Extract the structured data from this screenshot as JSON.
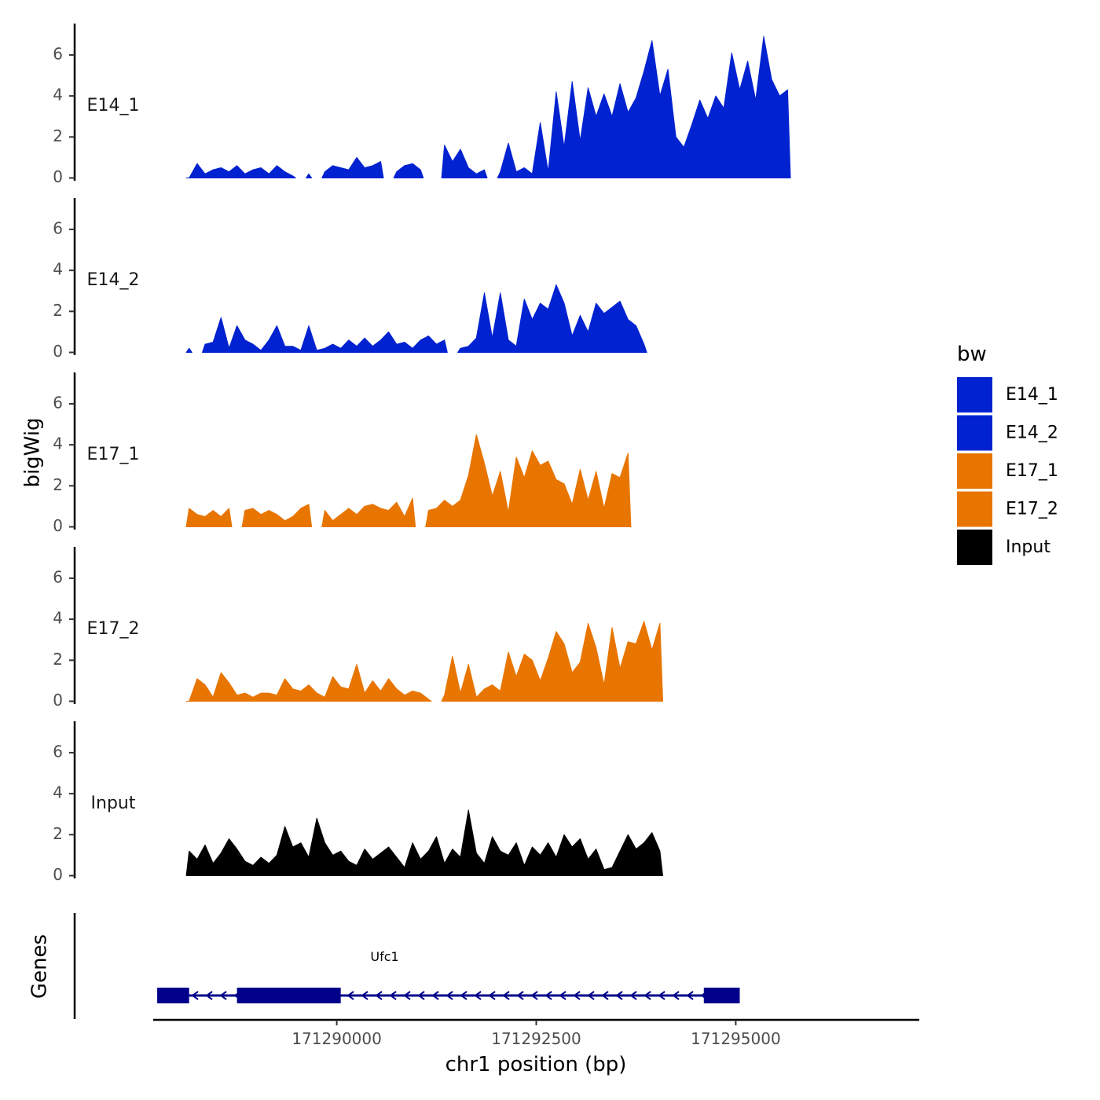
{
  "chart_data": {
    "type": "area",
    "title": "",
    "xlabel": "chr1 position (bp)",
    "ylabel": "bigWig",
    "genes_label": "Genes",
    "xlim": [
      171287700,
      171297300
    ],
    "ylim": [
      0,
      7.3
    ],
    "x_ticks": [
      171290000,
      171292500,
      171295000
    ],
    "x_tick_labels": [
      "171290000",
      "171292500",
      "171295000"
    ],
    "y_ticks": [
      0,
      2,
      4,
      6
    ],
    "y_tick_labels": [
      "0",
      "2",
      "4",
      "6"
    ],
    "legend": {
      "title": "bw",
      "position": "right",
      "entries": [
        {
          "label": "E14_1",
          "color": "#0022D0"
        },
        {
          "label": "E14_2",
          "color": "#0022D0"
        },
        {
          "label": "E17_1",
          "color": "#E87500"
        },
        {
          "label": "E17_2",
          "color": "#E87500"
        },
        {
          "label": "Input",
          "color": "#000000"
        }
      ]
    },
    "x_start": 171288150,
    "x_step": 100,
    "series": [
      {
        "name": "E14_1",
        "color": "#0022D0",
        "values": [
          0.0,
          0.7,
          0.2,
          0.4,
          0.5,
          0.3,
          0.6,
          0.2,
          0.4,
          0.5,
          0.2,
          0.6,
          0.3,
          0.1,
          null,
          0.2,
          null,
          0.3,
          0.6,
          0.5,
          0.4,
          1.0,
          0.5,
          0.6,
          0.8,
          null,
          0.3,
          0.6,
          0.7,
          0.4,
          null,
          null,
          1.6,
          0.8,
          1.4,
          0.5,
          0.2,
          0.4,
          null,
          0.3,
          1.7,
          0.3,
          0.5,
          0.2,
          2.7,
          0.3,
          4.2,
          1.5,
          4.7,
          1.8,
          4.4,
          3.0,
          4.1,
          3.0,
          4.6,
          3.2,
          3.9,
          5.2,
          6.7,
          4.0,
          5.3,
          2.0,
          1.5,
          2.6,
          3.8,
          2.9,
          4.0,
          3.4,
          6.1,
          4.3,
          5.7,
          3.8,
          6.9,
          4.8,
          4.0,
          4.3
        ]
      },
      {
        "name": "E14_2",
        "color": "#0022D0",
        "values": [
          0.2,
          null,
          0.4,
          0.5,
          1.7,
          0.2,
          1.3,
          0.6,
          0.4,
          0.1,
          0.6,
          1.3,
          0.3,
          0.3,
          0.1,
          1.3,
          0.1,
          0.2,
          0.4,
          0.2,
          0.6,
          0.3,
          0.7,
          0.3,
          0.6,
          1.0,
          0.4,
          0.5,
          0.2,
          0.6,
          0.8,
          0.4,
          0.6,
          null,
          0.2,
          0.3,
          0.7,
          2.9,
          0.7,
          2.9,
          0.6,
          0.3,
          2.6,
          1.6,
          2.4,
          2.1,
          3.3,
          2.4,
          0.8,
          1.8,
          1.0,
          2.4,
          1.9,
          2.2,
          2.5,
          1.6,
          1.3,
          0.4
        ]
      },
      {
        "name": "E17_1",
        "color": "#E87500",
        "values": [
          0.9,
          0.6,
          0.5,
          0.8,
          0.5,
          0.9,
          null,
          0.8,
          0.9,
          0.6,
          0.8,
          0.6,
          0.3,
          0.5,
          0.9,
          1.1,
          null,
          0.8,
          0.3,
          0.6,
          0.9,
          0.6,
          1.0,
          1.1,
          0.9,
          0.8,
          1.2,
          0.5,
          1.4,
          null,
          0.8,
          0.9,
          1.3,
          1.0,
          1.3,
          2.5,
          4.5,
          3.1,
          1.5,
          2.7,
          0.7,
          3.4,
          2.4,
          3.7,
          3.0,
          3.2,
          2.3,
          2.1,
          1.1,
          2.8,
          1.3,
          2.7,
          0.9,
          2.6,
          2.4,
          3.6
        ]
      },
      {
        "name": "E17_2",
        "color": "#E87500",
        "values": [
          0.0,
          1.1,
          0.8,
          0.2,
          1.4,
          0.9,
          0.3,
          0.4,
          0.2,
          0.4,
          0.4,
          0.3,
          1.1,
          0.6,
          0.5,
          0.8,
          0.4,
          0.2,
          1.2,
          0.7,
          0.6,
          1.8,
          0.4,
          1.0,
          0.5,
          1.1,
          0.6,
          0.3,
          0.5,
          0.4,
          0.1,
          null,
          0.3,
          2.2,
          0.4,
          1.8,
          0.2,
          0.6,
          0.8,
          0.5,
          2.4,
          1.2,
          2.3,
          2.0,
          1.0,
          2.1,
          3.4,
          2.8,
          1.4,
          1.9,
          3.8,
          2.6,
          0.8,
          3.6,
          1.6,
          2.9,
          2.8,
          3.9,
          2.5,
          3.8
        ]
      },
      {
        "name": "Input",
        "color": "#000000",
        "values": [
          1.2,
          0.8,
          1.5,
          0.6,
          1.1,
          1.8,
          1.3,
          0.7,
          0.5,
          0.9,
          0.6,
          1.0,
          2.4,
          1.4,
          1.6,
          0.9,
          2.8,
          1.6,
          1.0,
          1.2,
          0.7,
          0.5,
          1.3,
          0.8,
          1.1,
          1.4,
          0.9,
          0.4,
          1.6,
          0.8,
          1.2,
          1.9,
          0.6,
          1.3,
          0.9,
          3.2,
          1.1,
          0.6,
          1.9,
          1.2,
          1.0,
          1.6,
          0.5,
          1.4,
          1.0,
          1.6,
          0.9,
          2.0,
          1.4,
          1.8,
          0.8,
          1.3,
          0.3,
          0.4,
          1.2,
          2.0,
          1.3,
          1.6,
          2.1,
          1.2
        ]
      }
    ],
    "gene": {
      "name": "Ufc1",
      "strand": "-",
      "start": 171287750,
      "end": 171295050,
      "color": "#00008B",
      "exons": [
        {
          "start": 171287750,
          "end": 171288150
        },
        {
          "start": 171288750,
          "end": 171290050
        },
        {
          "start": 171294600,
          "end": 171295050
        }
      ]
    }
  }
}
